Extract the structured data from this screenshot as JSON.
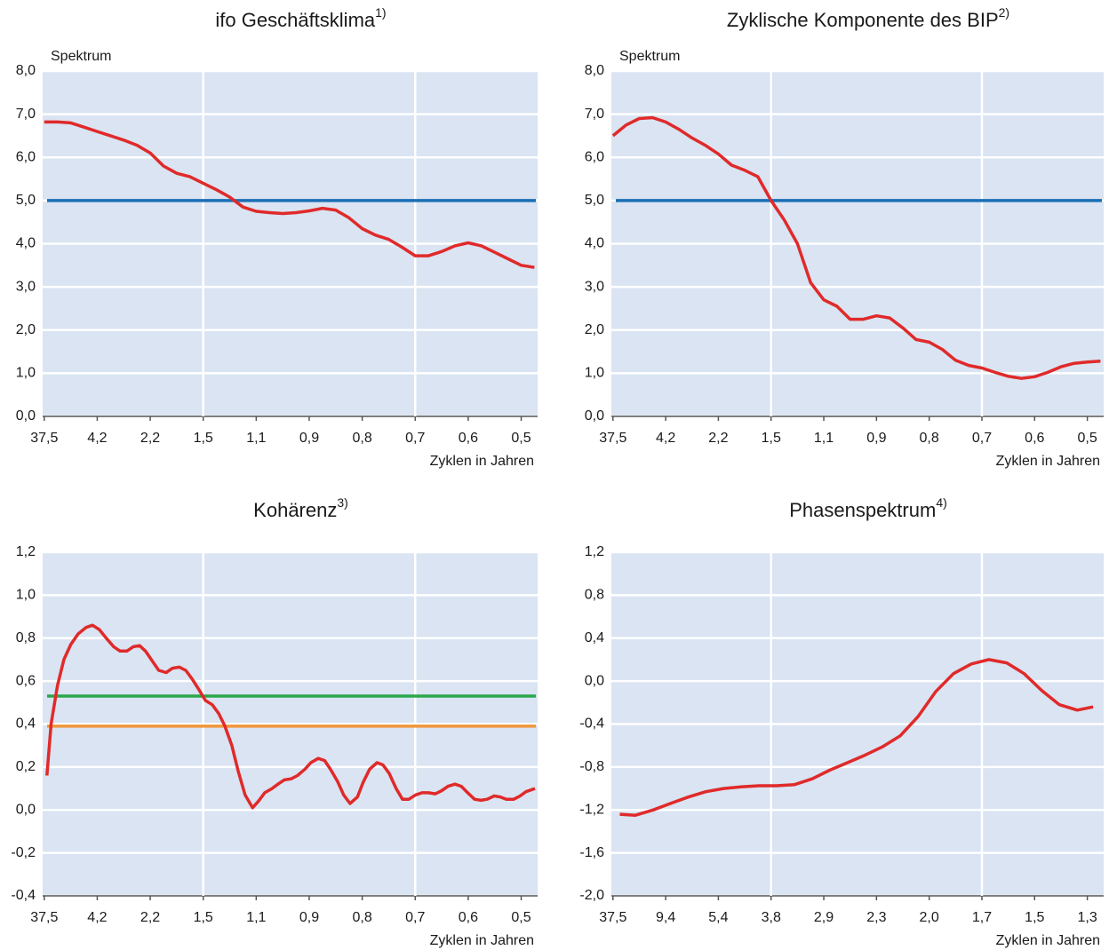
{
  "chart_data": [
    {
      "type": "line",
      "title": "ifo Geschäftsklima",
      "title_note": "1)",
      "ylabel": "Spektrum",
      "xlabel": "Zyklen in Jahren",
      "xlim": [
        -0.03,
        9.31
      ],
      "ylim": [
        0,
        8
      ],
      "yticks": [
        {
          "value": 0,
          "label": "0,0"
        },
        {
          "value": 1,
          "label": "1,0"
        },
        {
          "value": 2,
          "label": "2,0"
        },
        {
          "value": 3,
          "label": "3,0"
        },
        {
          "value": 4,
          "label": "4,0"
        },
        {
          "value": 5,
          "label": "5,0"
        },
        {
          "value": 6,
          "label": "6,0"
        },
        {
          "value": 7,
          "label": "7,0"
        },
        {
          "value": 8,
          "label": "8,0"
        }
      ],
      "xticks": [
        {
          "value": 0,
          "label": "37,5"
        },
        {
          "value": 1,
          "label": "4,2"
        },
        {
          "value": 2,
          "label": "2,2"
        },
        {
          "value": 3,
          "label": "1,5",
          "grid": true
        },
        {
          "value": 4,
          "label": "1,1"
        },
        {
          "value": 5,
          "label": "0,9"
        },
        {
          "value": 6,
          "label": "0,8"
        },
        {
          "value": 7,
          "label": "0,7",
          "grid": true
        },
        {
          "value": 8,
          "label": "0,6"
        },
        {
          "value": 9,
          "label": "0,5"
        }
      ],
      "hlines": [
        {
          "value": 5.0,
          "color": "#1a6fb5"
        }
      ],
      "series": [
        {
          "color": "#e02a2a",
          "x": [
            0,
            0.25,
            0.5,
            0.75,
            1,
            1.25,
            1.5,
            1.75,
            2,
            2.25,
            2.5,
            2.75,
            3,
            3.25,
            3.5,
            3.75,
            4,
            4.25,
            4.5,
            4.75,
            5,
            5.25,
            5.5,
            5.75,
            6,
            6.25,
            6.5,
            6.75,
            7,
            7.25,
            7.5,
            7.75,
            8,
            8.25,
            8.5,
            8.75,
            9,
            9.25
          ],
          "values": [
            6.82,
            6.82,
            6.8,
            6.7,
            6.6,
            6.5,
            6.4,
            6.28,
            6.1,
            5.8,
            5.63,
            5.55,
            5.4,
            5.25,
            5.08,
            4.85,
            4.75,
            4.72,
            4.7,
            4.72,
            4.76,
            4.82,
            4.78,
            4.6,
            4.35,
            4.2,
            4.1,
            3.92,
            3.72,
            3.72,
            3.82,
            3.95,
            4.02,
            3.95,
            3.8,
            3.65,
            3.5,
            3.45
          ]
        }
      ]
    },
    {
      "type": "line",
      "title": "Zyklische Komponente des BIP",
      "title_note": "2)",
      "ylabel": "Spektrum",
      "xlabel": "Zyklen in Jahren",
      "xlim": [
        -0.03,
        9.31
      ],
      "ylim": [
        0,
        8
      ],
      "yticks": [
        {
          "value": 0,
          "label": "0,0"
        },
        {
          "value": 1,
          "label": "1,0"
        },
        {
          "value": 2,
          "label": "2,0"
        },
        {
          "value": 3,
          "label": "3,0"
        },
        {
          "value": 4,
          "label": "4,0"
        },
        {
          "value": 5,
          "label": "5,0"
        },
        {
          "value": 6,
          "label": "6,0"
        },
        {
          "value": 7,
          "label": "7,0"
        },
        {
          "value": 8,
          "label": "8,0"
        }
      ],
      "xticks": [
        {
          "value": 0,
          "label": "37,5"
        },
        {
          "value": 1,
          "label": "4,2"
        },
        {
          "value": 2,
          "label": "2,2"
        },
        {
          "value": 3,
          "label": "1,5",
          "grid": true
        },
        {
          "value": 4,
          "label": "1,1"
        },
        {
          "value": 5,
          "label": "0,9"
        },
        {
          "value": 6,
          "label": "0,8"
        },
        {
          "value": 7,
          "label": "0,7",
          "grid": true
        },
        {
          "value": 8,
          "label": "0,6"
        },
        {
          "value": 9,
          "label": "0,5"
        }
      ],
      "hlines": [
        {
          "value": 5.0,
          "color": "#1a6fb5"
        }
      ],
      "series": [
        {
          "color": "#e02a2a",
          "x": [
            0,
            0.25,
            0.5,
            0.75,
            1,
            1.25,
            1.5,
            1.75,
            2,
            2.25,
            2.5,
            2.75,
            3,
            3.25,
            3.5,
            3.75,
            4,
            4.25,
            4.5,
            4.75,
            5,
            5.25,
            5.5,
            5.75,
            6,
            6.25,
            6.5,
            6.75,
            7,
            7.25,
            7.5,
            7.75,
            8,
            8.25,
            8.5,
            8.75,
            9,
            9.25
          ],
          "values": [
            6.5,
            6.75,
            6.9,
            6.92,
            6.82,
            6.65,
            6.45,
            6.28,
            6.08,
            5.82,
            5.7,
            5.55,
            5.0,
            4.55,
            4.0,
            3.1,
            2.7,
            2.55,
            2.25,
            2.25,
            2.33,
            2.28,
            2.05,
            1.78,
            1.72,
            1.55,
            1.3,
            1.18,
            1.12,
            1.02,
            0.93,
            0.88,
            0.92,
            1.02,
            1.15,
            1.23,
            1.26,
            1.28
          ]
        }
      ]
    },
    {
      "type": "line",
      "title": "Kohärenz",
      "title_note": "3)",
      "xlabel": "Zyklen in Jahren",
      "xlim": [
        -0.03,
        9.31
      ],
      "ylim": [
        -0.4,
        1.2
      ],
      "yticks": [
        {
          "value": -0.4,
          "label": "-0,4"
        },
        {
          "value": -0.2,
          "label": "-0,2"
        },
        {
          "value": 0,
          "label": "0,0"
        },
        {
          "value": 0.2,
          "label": "0,2"
        },
        {
          "value": 0.4,
          "label": "0,4"
        },
        {
          "value": 0.6,
          "label": "0,6"
        },
        {
          "value": 0.8,
          "label": "0,8"
        },
        {
          "value": 1.0,
          "label": "1,0"
        },
        {
          "value": 1.2,
          "label": "1,2"
        }
      ],
      "xticks": [
        {
          "value": 0,
          "label": "37,5"
        },
        {
          "value": 1,
          "label": "4,2"
        },
        {
          "value": 2,
          "label": "2,2"
        },
        {
          "value": 3,
          "label": "1,5",
          "grid": true
        },
        {
          "value": 4,
          "label": "1,1"
        },
        {
          "value": 5,
          "label": "0,9"
        },
        {
          "value": 6,
          "label": "0,8"
        },
        {
          "value": 7,
          "label": "0,7",
          "grid": true
        },
        {
          "value": 8,
          "label": "0,6"
        },
        {
          "value": 9,
          "label": "0,5"
        }
      ],
      "hlines": [
        {
          "value": 0.53,
          "color": "#2aa84a"
        },
        {
          "value": 0.39,
          "color": "#f0963c"
        }
      ],
      "series": [
        {
          "color": "#e02a2a",
          "x": [
            0.05,
            0.13,
            0.25,
            0.37,
            0.5,
            0.64,
            0.79,
            0.91,
            1.04,
            1.17,
            1.31,
            1.43,
            1.56,
            1.68,
            1.8,
            1.91,
            2.05,
            2.16,
            2.3,
            2.42,
            2.55,
            2.67,
            2.79,
            2.92,
            3.04,
            3.17,
            3.29,
            3.41,
            3.54,
            3.66,
            3.79,
            3.93,
            4.04,
            4.16,
            4.3,
            4.41,
            4.53,
            4.66,
            4.78,
            4.92,
            5.03,
            5.17,
            5.29,
            5.4,
            5.54,
            5.65,
            5.77,
            5.91,
            6.02,
            6.14,
            6.28,
            6.39,
            6.51,
            6.64,
            6.76,
            6.88,
            7.01,
            7.13,
            7.25,
            7.38,
            7.5,
            7.62,
            7.75,
            7.87,
            7.99,
            8.12,
            8.24,
            8.36,
            8.49,
            8.61,
            8.72,
            8.86,
            8.98,
            9.09,
            9.26
          ],
          "values": [
            0.16,
            0.4,
            0.58,
            0.7,
            0.77,
            0.82,
            0.85,
            0.86,
            0.84,
            0.8,
            0.76,
            0.74,
            0.74,
            0.76,
            0.765,
            0.74,
            0.69,
            0.65,
            0.64,
            0.66,
            0.665,
            0.65,
            0.61,
            0.56,
            0.51,
            0.49,
            0.45,
            0.39,
            0.3,
            0.18,
            0.07,
            0.01,
            0.04,
            0.08,
            0.1,
            0.12,
            0.14,
            0.145,
            0.16,
            0.19,
            0.22,
            0.24,
            0.23,
            0.19,
            0.13,
            0.07,
            0.03,
            0.06,
            0.13,
            0.19,
            0.22,
            0.21,
            0.17,
            0.1,
            0.05,
            0.05,
            0.07,
            0.08,
            0.08,
            0.075,
            0.09,
            0.11,
            0.12,
            0.11,
            0.08,
            0.05,
            0.045,
            0.05,
            0.065,
            0.06,
            0.05,
            0.05,
            0.065,
            0.085,
            0.1
          ]
        }
      ]
    },
    {
      "type": "line",
      "title": "Phasenspektrum",
      "title_note": "4)",
      "xlabel": "Zyklen in Jahren",
      "xlim": [
        -0.03,
        9.31
      ],
      "ylim": [
        -2.0,
        1.2
      ],
      "yticks": [
        {
          "value": -2.0,
          "label": "-2,0"
        },
        {
          "value": -1.6,
          "label": "-1,6"
        },
        {
          "value": -1.2,
          "label": "-1,2"
        },
        {
          "value": -0.8,
          "label": "-0,8"
        },
        {
          "value": -0.4,
          "label": "-0,4"
        },
        {
          "value": 0,
          "label": "0,0"
        },
        {
          "value": 0.4,
          "label": "0,4"
        },
        {
          "value": 0.8,
          "label": "0,8"
        },
        {
          "value": 1.2,
          "label": "1,2"
        }
      ],
      "xticks": [
        {
          "value": 0,
          "label": "37,5"
        },
        {
          "value": 1,
          "label": "9,4"
        },
        {
          "value": 2,
          "label": "5,4"
        },
        {
          "value": 3,
          "label": "3,8",
          "grid": true
        },
        {
          "value": 4,
          "label": "2,9"
        },
        {
          "value": 5,
          "label": "2,3"
        },
        {
          "value": 6,
          "label": "2,0"
        },
        {
          "value": 7,
          "label": "1,7",
          "grid": true
        },
        {
          "value": 8,
          "label": "1,5"
        },
        {
          "value": 9,
          "label": "1,3"
        }
      ],
      "hlines": [],
      "series": [
        {
          "color": "#e02a2a",
          "x": [
            0.13,
            0.42,
            0.76,
            1.09,
            1.43,
            1.76,
            2.1,
            2.43,
            2.77,
            3.1,
            3.44,
            3.78,
            4.11,
            4.45,
            4.78,
            5.12,
            5.45,
            5.79,
            6.12,
            6.46,
            6.8,
            7.13,
            7.47,
            7.8,
            8.14,
            8.47,
            8.81,
            9.11
          ],
          "values": [
            -1.24,
            -1.25,
            -1.2,
            -1.14,
            -1.08,
            -1.03,
            -1.0,
            -0.985,
            -0.975,
            -0.975,
            -0.965,
            -0.91,
            -0.83,
            -0.76,
            -0.69,
            -0.61,
            -0.51,
            -0.33,
            -0.1,
            0.07,
            0.16,
            0.2,
            0.17,
            0.07,
            -0.09,
            -0.22,
            -0.27,
            -0.24
          ]
        }
      ]
    }
  ]
}
